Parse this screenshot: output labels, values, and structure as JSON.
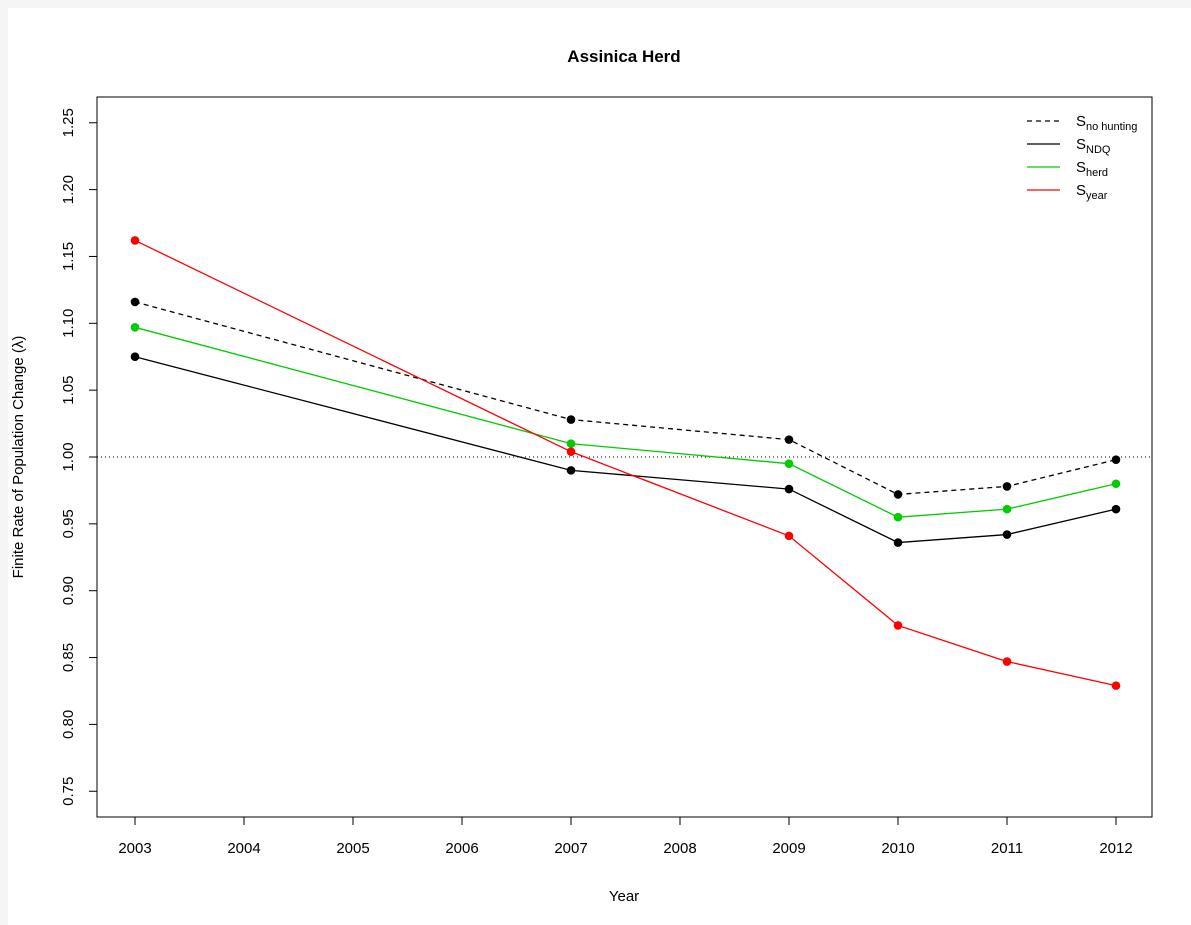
{
  "chart_data": {
    "type": "line",
    "title": "Assinica Herd",
    "xlabel": "Year",
    "ylabel": "Finite Rate of Population Change (λ)",
    "x_ticks": [
      "2003",
      "2004",
      "2005",
      "2006",
      "2007",
      "2008",
      "2009",
      "2010",
      "2011",
      "2012"
    ],
    "y_ticks": [
      "0.75",
      "0.80",
      "0.85",
      "0.90",
      "0.95",
      "1.00",
      "1.05",
      "1.10",
      "1.15",
      "1.20",
      "1.25"
    ],
    "ylim": [
      0.72,
      1.27
    ],
    "reference_line": 1.0,
    "legend_position": "top-right",
    "x": [
      "2003",
      "2007",
      "2009",
      "2010",
      "2011",
      "2012"
    ],
    "series": [
      {
        "name_main": "S",
        "name_sub": "no hunting",
        "color": "#000000",
        "line": "dashed",
        "point_color": "#000000",
        "values": [
          1.116,
          1.028,
          1.013,
          0.972,
          0.978,
          0.998
        ]
      },
      {
        "name_main": "S",
        "name_sub": "NDQ",
        "color": "#000000",
        "line": "solid",
        "point_color": "#000000",
        "values": [
          1.075,
          0.99,
          0.976,
          0.936,
          0.942,
          0.961
        ]
      },
      {
        "name_main": "S",
        "name_sub": "herd",
        "color": "#00cc00",
        "line": "solid",
        "point_color": "#00cc00",
        "values": [
          1.097,
          1.01,
          0.995,
          0.955,
          0.961,
          0.98
        ]
      },
      {
        "name_main": "S",
        "name_sub": "year",
        "color": "#ff0000",
        "line": "solid",
        "point_color": "#ff0000",
        "values": [
          1.162,
          1.004,
          0.941,
          0.874,
          0.847,
          0.829
        ]
      }
    ]
  }
}
